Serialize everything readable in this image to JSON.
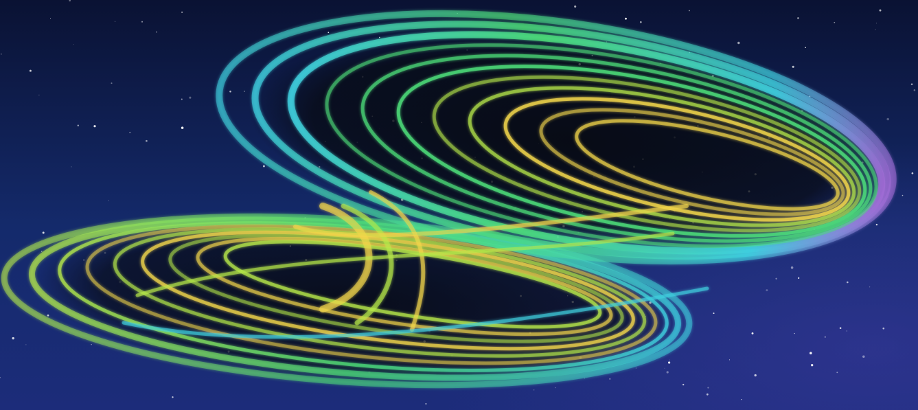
{
  "scene": {
    "subject": "lorenz-attractor",
    "palette": {
      "space_top": "#0a1233",
      "space_mid": "#142a6b",
      "space_bottom": "#1c2c7a",
      "space_right_glow": "#3b3aa0",
      "star": "#ffffff",
      "ribbon_violet": "#a06cd5",
      "ribbon_cyan": "#3fd0e0",
      "ribbon_green": "#4ee07a",
      "ribbon_lime": "#b6e84a",
      "ribbon_yellow": "#f2d64b",
      "lobe_shadow": "#070a12"
    }
  }
}
